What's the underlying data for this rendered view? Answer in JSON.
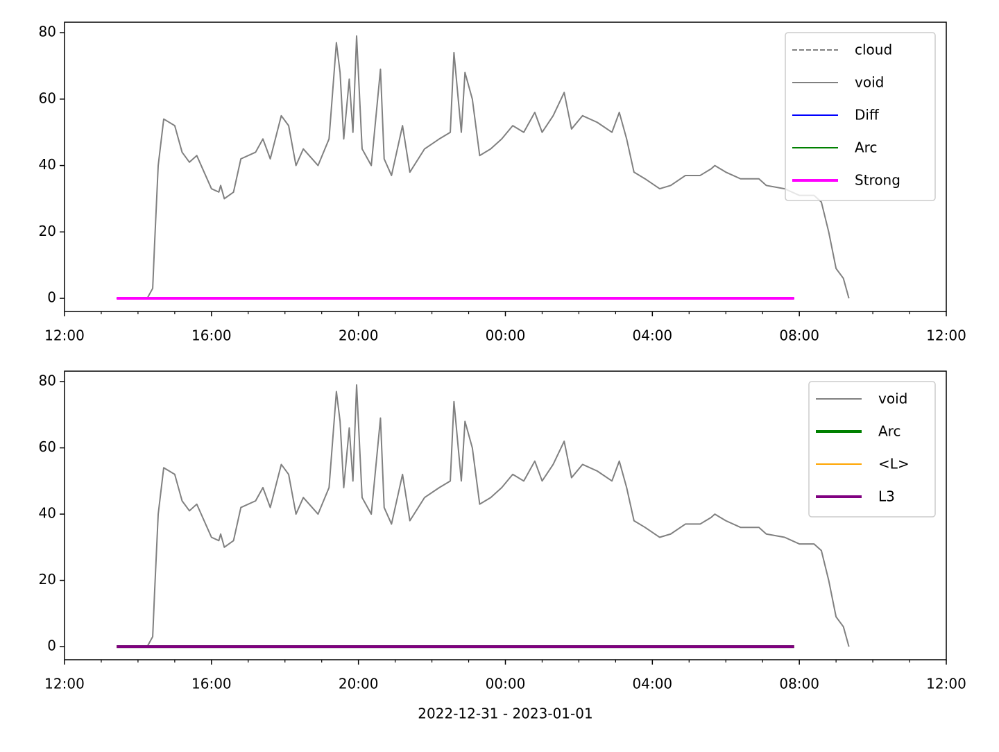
{
  "chart_data": [
    {
      "type": "line",
      "xlim": [
        0,
        24
      ],
      "ylim": [
        -3.96,
        83.16
      ],
      "xticks": [
        {
          "value": 0,
          "label": "12:00"
        },
        {
          "value": 4,
          "label": "16:00"
        },
        {
          "value": 8,
          "label": "20:00"
        },
        {
          "value": 12,
          "label": "00:00"
        },
        {
          "value": 16,
          "label": "04:00"
        },
        {
          "value": 20,
          "label": "08:00"
        },
        {
          "value": 24,
          "label": "12:00"
        }
      ],
      "xminorticks": [
        1,
        2,
        3,
        5,
        6,
        7,
        9,
        10,
        11,
        13,
        14,
        15,
        17,
        18,
        19,
        21,
        22,
        23
      ],
      "yticks": [
        0,
        20,
        40,
        60,
        80
      ],
      "legend": "upper right",
      "series": [
        {
          "name": "cloud",
          "color": "#808080",
          "linestyle": "dashed",
          "x": [
            1.42,
            19.86
          ],
          "values": [
            0,
            0
          ]
        },
        {
          "name": "void",
          "color": "#808080",
          "linestyle": "solid",
          "x": [
            1.42,
            2.0,
            2.25,
            2.4,
            2.45,
            2.55,
            2.7,
            3.0,
            3.2,
            3.4,
            3.6,
            3.8,
            4.0,
            4.2,
            4.25,
            4.35,
            4.6,
            4.8,
            5.2,
            5.4,
            5.6,
            5.9,
            6.1,
            6.3,
            6.5,
            6.9,
            7.2,
            7.4,
            7.5,
            7.6,
            7.75,
            7.85,
            7.95,
            8.1,
            8.35,
            8.6,
            8.7,
            8.9,
            9.2,
            9.4,
            9.8,
            10.2,
            10.5,
            10.6,
            10.8,
            10.9,
            11.1,
            11.3,
            11.6,
            11.9,
            12.2,
            12.5,
            12.8,
            13.0,
            13.3,
            13.6,
            13.8,
            14.1,
            14.5,
            14.9,
            15.1,
            15.3,
            15.5,
            15.8,
            16.2,
            16.5,
            16.9,
            17.3,
            17.6,
            17.7,
            18.0,
            18.4,
            18.9,
            19.1,
            19.6,
            20.0,
            20.4,
            20.6,
            20.8,
            21.0,
            21.2,
            21.35
          ],
          "values": [
            0,
            0,
            0,
            3,
            16,
            40,
            54,
            52,
            44,
            41,
            43,
            38,
            33,
            32,
            34,
            30,
            32,
            42,
            44,
            48,
            42,
            55,
            52,
            40,
            45,
            40,
            48,
            77,
            68,
            48,
            66,
            50,
            79,
            45,
            40,
            69,
            42,
            37,
            52,
            38,
            45,
            48,
            50,
            74,
            50,
            68,
            60,
            43,
            45,
            48,
            52,
            50,
            56,
            50,
            55,
            62,
            51,
            55,
            53,
            50,
            56,
            48,
            38,
            36,
            33,
            34,
            37,
            37,
            39,
            40,
            38,
            36,
            36,
            34,
            33,
            31,
            31,
            29,
            20,
            9,
            6,
            0
          ]
        },
        {
          "name": "Diff",
          "color": "#0000ff",
          "linestyle": "solid",
          "x": [
            1.42,
            19.86
          ],
          "values": [
            0,
            0
          ]
        },
        {
          "name": "Arc",
          "color": "#008000",
          "linestyle": "solid",
          "x": [
            1.42,
            19.86
          ],
          "values": [
            0,
            0
          ]
        },
        {
          "name": "Strong",
          "color": "#ff00ff",
          "linestyle": "solid",
          "thick": true,
          "x": [
            1.42,
            19.86
          ],
          "values": [
            0,
            0
          ]
        }
      ]
    },
    {
      "type": "line",
      "xlim": [
        0,
        24
      ],
      "ylim": [
        -3.96,
        83.16
      ],
      "xlabel": "2022-12-31 - 2023-01-01",
      "xticks": [
        {
          "value": 0,
          "label": "12:00"
        },
        {
          "value": 4,
          "label": "16:00"
        },
        {
          "value": 8,
          "label": "20:00"
        },
        {
          "value": 12,
          "label": "00:00"
        },
        {
          "value": 16,
          "label": "04:00"
        },
        {
          "value": 20,
          "label": "08:00"
        },
        {
          "value": 24,
          "label": "12:00"
        }
      ],
      "xminorticks": [
        1,
        2,
        3,
        5,
        6,
        7,
        9,
        10,
        11,
        13,
        14,
        15,
        17,
        18,
        19,
        21,
        22,
        23
      ],
      "yticks": [
        0,
        20,
        40,
        60,
        80
      ],
      "legend": "upper right",
      "series": [
        {
          "name": "void",
          "color": "#808080",
          "linestyle": "solid",
          "x": [
            1.42,
            2.0,
            2.25,
            2.4,
            2.45,
            2.55,
            2.7,
            3.0,
            3.2,
            3.4,
            3.6,
            3.8,
            4.0,
            4.2,
            4.25,
            4.35,
            4.6,
            4.8,
            5.2,
            5.4,
            5.6,
            5.9,
            6.1,
            6.3,
            6.5,
            6.9,
            7.2,
            7.4,
            7.5,
            7.6,
            7.75,
            7.85,
            7.95,
            8.1,
            8.35,
            8.6,
            8.7,
            8.9,
            9.2,
            9.4,
            9.8,
            10.2,
            10.5,
            10.6,
            10.8,
            10.9,
            11.1,
            11.3,
            11.6,
            11.9,
            12.2,
            12.5,
            12.8,
            13.0,
            13.3,
            13.6,
            13.8,
            14.1,
            14.5,
            14.9,
            15.1,
            15.3,
            15.5,
            15.8,
            16.2,
            16.5,
            16.9,
            17.3,
            17.6,
            17.7,
            18.0,
            18.4,
            18.9,
            19.1,
            19.6,
            20.0,
            20.4,
            20.6,
            20.8,
            21.0,
            21.2,
            21.35
          ],
          "values": [
            0,
            0,
            0,
            3,
            16,
            40,
            54,
            52,
            44,
            41,
            43,
            38,
            33,
            32,
            34,
            30,
            32,
            42,
            44,
            48,
            42,
            55,
            52,
            40,
            45,
            40,
            48,
            77,
            68,
            48,
            66,
            50,
            79,
            45,
            40,
            69,
            42,
            37,
            52,
            38,
            45,
            48,
            50,
            74,
            50,
            68,
            60,
            43,
            45,
            48,
            52,
            50,
            56,
            50,
            55,
            62,
            51,
            55,
            53,
            50,
            56,
            48,
            38,
            36,
            33,
            34,
            37,
            37,
            39,
            40,
            38,
            36,
            36,
            34,
            33,
            31,
            31,
            29,
            20,
            9,
            6,
            0
          ]
        },
        {
          "name": "Arc",
          "color": "#008000",
          "linestyle": "solid",
          "thick": true,
          "x": [
            1.42,
            19.86
          ],
          "values": [
            0,
            0
          ]
        },
        {
          "name": "<L>",
          "color": "#ffa500",
          "linestyle": "solid",
          "x": [
            1.42,
            19.86
          ],
          "values": [
            0,
            0
          ]
        },
        {
          "name": "L3",
          "color": "#800080",
          "linestyle": "solid",
          "thick": true,
          "x": [
            1.42,
            19.86
          ],
          "values": [
            0,
            0
          ]
        }
      ]
    }
  ]
}
